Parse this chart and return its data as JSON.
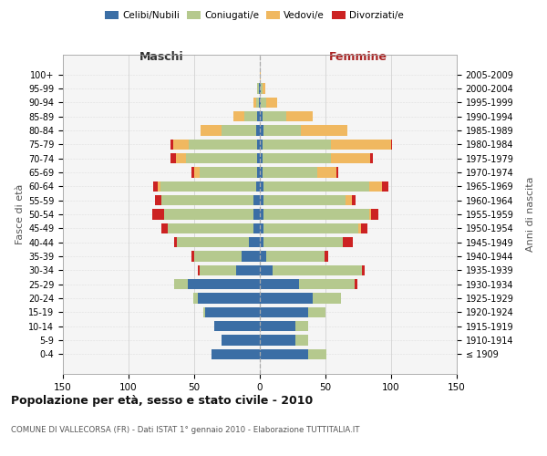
{
  "age_groups": [
    "100+",
    "95-99",
    "90-94",
    "85-89",
    "80-84",
    "75-79",
    "70-74",
    "65-69",
    "60-64",
    "55-59",
    "50-54",
    "45-49",
    "40-44",
    "35-39",
    "30-34",
    "25-29",
    "20-24",
    "15-19",
    "10-14",
    "5-9",
    "0-4"
  ],
  "birth_years": [
    "≤ 1909",
    "1910-1914",
    "1915-1919",
    "1920-1924",
    "1925-1929",
    "1930-1934",
    "1935-1939",
    "1940-1944",
    "1945-1949",
    "1950-1954",
    "1955-1959",
    "1960-1964",
    "1965-1969",
    "1970-1974",
    "1975-1979",
    "1980-1984",
    "1985-1989",
    "1990-1994",
    "1995-1999",
    "2000-2004",
    "2005-2009"
  ],
  "male": {
    "celibe": [
      0,
      1,
      1,
      2,
      3,
      2,
      2,
      2,
      3,
      5,
      5,
      5,
      8,
      14,
      18,
      55,
      47,
      42,
      35,
      29,
      37
    ],
    "coniugato": [
      0,
      1,
      2,
      10,
      26,
      52,
      54,
      44,
      73,
      70,
      68,
      65,
      55,
      36,
      28,
      10,
      4,
      1,
      0,
      0,
      0
    ],
    "vedovo": [
      0,
      0,
      2,
      8,
      16,
      12,
      8,
      4,
      2,
      0,
      0,
      0,
      0,
      0,
      0,
      0,
      0,
      0,
      0,
      0,
      0
    ],
    "divorziato": [
      0,
      0,
      0,
      0,
      0,
      2,
      4,
      2,
      3,
      5,
      9,
      5,
      2,
      2,
      1,
      0,
      0,
      0,
      0,
      0,
      0
    ]
  },
  "female": {
    "nubile": [
      0,
      1,
      1,
      2,
      3,
      2,
      2,
      2,
      3,
      3,
      3,
      3,
      3,
      5,
      10,
      30,
      40,
      37,
      27,
      27,
      37
    ],
    "coniugata": [
      0,
      1,
      4,
      18,
      28,
      52,
      52,
      42,
      80,
      62,
      80,
      72,
      60,
      44,
      68,
      42,
      22,
      13,
      10,
      10,
      14
    ],
    "vedova": [
      1,
      2,
      8,
      20,
      36,
      46,
      30,
      14,
      10,
      5,
      2,
      2,
      0,
      0,
      0,
      0,
      0,
      0,
      0,
      0,
      0
    ],
    "divorziata": [
      0,
      0,
      0,
      0,
      0,
      1,
      2,
      2,
      5,
      3,
      5,
      5,
      8,
      3,
      2,
      2,
      0,
      0,
      0,
      0,
      0
    ]
  },
  "colors": {
    "celibe": "#3b6ea5",
    "coniugato": "#b5c98e",
    "vedovo": "#f0b860",
    "divorziato": "#cc2222"
  },
  "xlim": 150,
  "title": "Popolazione per età, sesso e stato civile - 2010",
  "subtitle": "COMUNE DI VALLECORSA (FR) - Dati ISTAT 1° gennaio 2010 - Elaborazione TUTTITALIA.IT",
  "xlabel_left": "Maschi",
  "xlabel_right": "Femmine",
  "ylabel_left": "Fasce di età",
  "ylabel_right": "Anni di nascita",
  "bg_color": "#f5f5f5",
  "bar_height": 0.75
}
